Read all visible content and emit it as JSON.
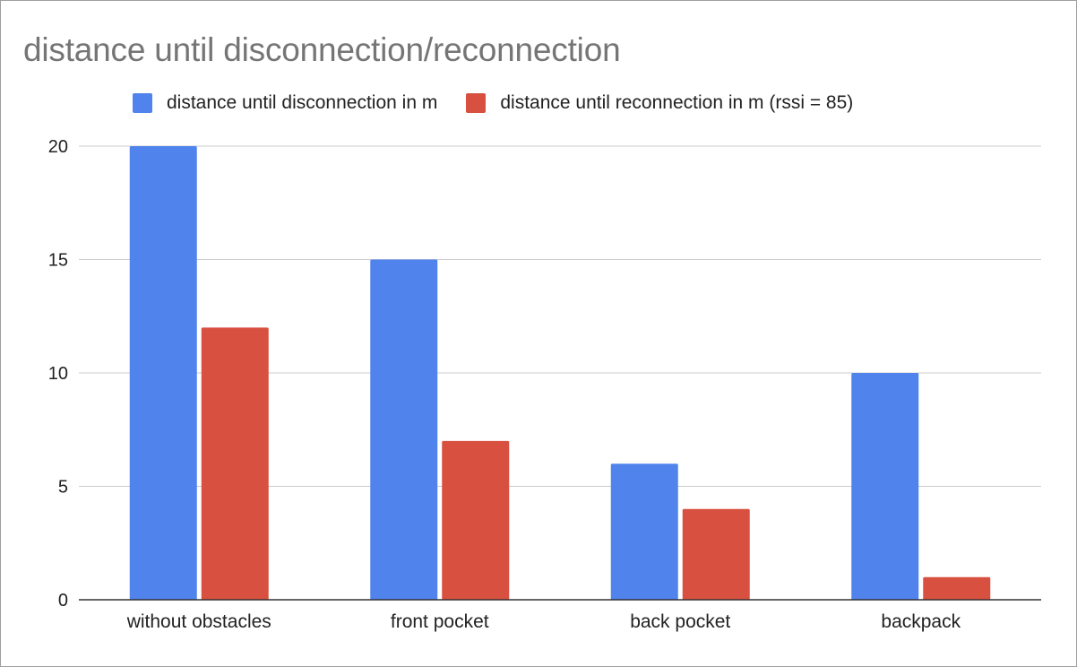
{
  "chart_data": {
    "type": "bar",
    "title": "distance until disconnection/reconnection",
    "xlabel": "",
    "ylabel": "",
    "categories": [
      "without obstacles",
      "front pocket",
      "back pocket",
      "backpack"
    ],
    "series": [
      {
        "name": "distance until disconnection in m",
        "color": "#5083ec",
        "values": [
          20,
          15,
          6,
          10
        ]
      },
      {
        "name": "distance until reconnection in m (rssi = 85)",
        "color": "#d85040",
        "values": [
          12,
          7,
          4,
          1
        ]
      }
    ],
    "yticks": [
      0,
      5,
      10,
      15,
      20
    ],
    "ylim": [
      0,
      20
    ],
    "grid": true,
    "legend_position": "top"
  }
}
